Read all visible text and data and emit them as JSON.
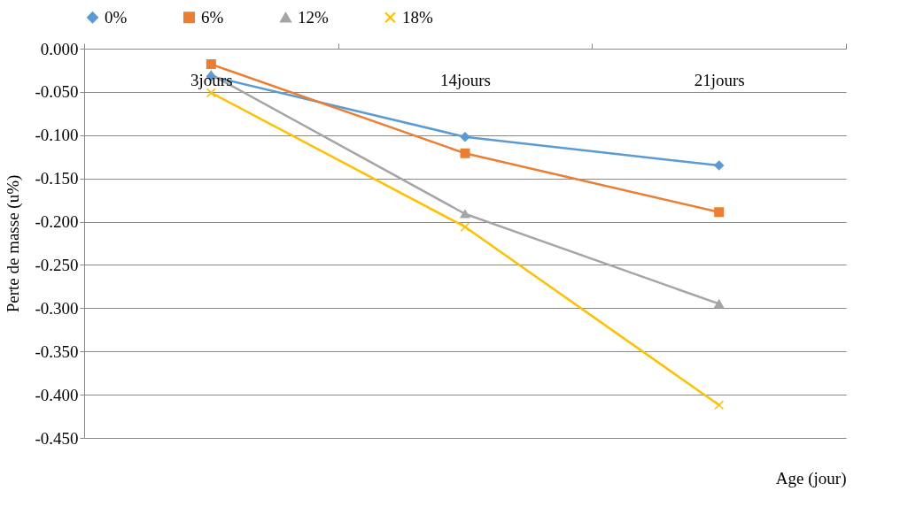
{
  "chart_data": {
    "type": "line",
    "xlabel": "Age (jour)",
    "ylabel": "Perte de masse   (u%)",
    "categories": [
      "3jours",
      "14jours",
      "21jours"
    ],
    "series": [
      {
        "name": "0%",
        "color": "#5b9bd5",
        "marker": "diamond",
        "values": [
          -0.032,
          -0.102,
          -0.135
        ]
      },
      {
        "name": "6%",
        "color": "#ed7d31",
        "marker": "square",
        "values": [
          -0.018,
          -0.121,
          -0.189
        ]
      },
      {
        "name": "12%",
        "color": "#a5a5a5",
        "marker": "triangle",
        "values": [
          -0.03,
          -0.191,
          -0.295
        ]
      },
      {
        "name": "18%",
        "color": "#ffc000",
        "marker": "cross",
        "values": [
          -0.051,
          -0.206,
          -0.412
        ]
      }
    ],
    "ylim": [
      -0.45,
      0
    ],
    "yticks": [
      {
        "value": 0,
        "label": "0.000"
      },
      {
        "value": -0.05,
        "label": "-0.050"
      },
      {
        "value": -0.1,
        "label": "-0.100"
      },
      {
        "value": -0.15,
        "label": "-0.150"
      },
      {
        "value": -0.2,
        "label": "-0.200"
      },
      {
        "value": -0.25,
        "label": "-0.250"
      },
      {
        "value": -0.3,
        "label": "-0.300"
      },
      {
        "value": -0.35,
        "label": "-0.350"
      },
      {
        "value": -0.4,
        "label": "-0.400"
      },
      {
        "value": -0.45,
        "label": "-0.450"
      }
    ],
    "grid": "y",
    "legend": "top"
  }
}
